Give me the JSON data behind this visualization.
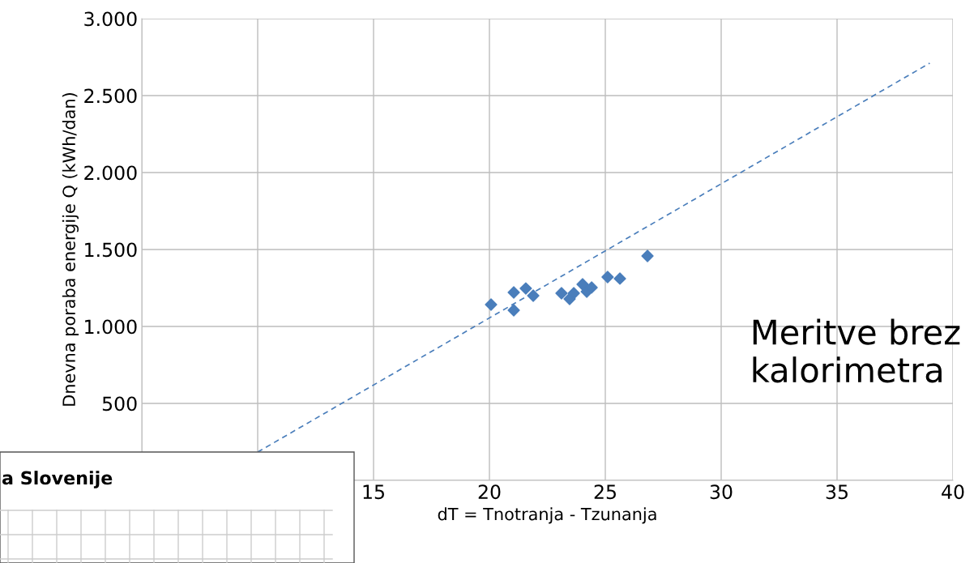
{
  "chart_data": {
    "type": "scatter",
    "xlabel": "dT = Tnotranja - Tzunanja",
    "ylabel": "Dnevna poraba energije Q (kWh/dan)",
    "xlim": [
      5,
      40
    ],
    "xticks": [
      {
        "value": 5,
        "label": null
      },
      {
        "value": 10,
        "label": null
      },
      15,
      20,
      25,
      30,
      35,
      40
    ],
    "ylim": [
      0,
      3000
    ],
    "yticks": [
      {
        "value": 0,
        "label": null
      },
      {
        "value": 500,
        "label": "500"
      },
      {
        "value": 1000,
        "label": "1.000"
      },
      {
        "value": 1500,
        "label": "1.500"
      },
      {
        "value": 2000,
        "label": "2.000"
      },
      {
        "value": 2500,
        "label": "2.500"
      },
      {
        "value": 3000,
        "label": "3.000"
      }
    ],
    "grid": true,
    "series": [
      {
        "color": "#4a7ebb",
        "marker": "diamond",
        "x": [
          20.07,
          21.05,
          21.05,
          21.57,
          21.89,
          23.11,
          23.46,
          23.64,
          24.02,
          24.2,
          24.41,
          25.1,
          25.63,
          26.82
        ],
        "values": [
          1142,
          1221,
          1105,
          1247,
          1200,
          1216,
          1179,
          1216,
          1274,
          1226,
          1253,
          1321,
          1311,
          1458
        ]
      },
      {
        "type": "line",
        "color": "#4a7ebb",
        "line_style": "dashed",
        "x": [
          10,
          39
        ],
        "values": [
          184,
          2711
        ]
      }
    ],
    "annotations": [
      "Meritve brez\nkalorimetra",
      "a Slovenije"
    ]
  }
}
